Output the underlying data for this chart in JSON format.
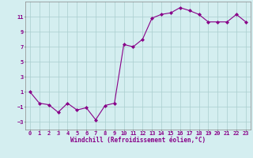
{
  "x": [
    0,
    1,
    2,
    3,
    4,
    5,
    6,
    7,
    8,
    9,
    10,
    11,
    12,
    13,
    14,
    15,
    16,
    17,
    18,
    19,
    20,
    21,
    22,
    23
  ],
  "y": [
    1.0,
    -0.5,
    -0.7,
    -1.7,
    -0.5,
    -1.4,
    -1.1,
    -2.7,
    -0.8,
    -0.5,
    7.3,
    7.0,
    8.0,
    10.8,
    11.3,
    11.5,
    12.2,
    11.8,
    11.3,
    10.3,
    10.3,
    10.3,
    11.3,
    10.3
  ],
  "line_color": "#880088",
  "marker": "D",
  "marker_size": 2.0,
  "bg_color": "#d4eef0",
  "grid_color": "#aacece",
  "xlabel": "Windchill (Refroidissement éolien,°C)",
  "xlim": [
    -0.5,
    23.5
  ],
  "ylim": [
    -4,
    13
  ],
  "xticks": [
    0,
    1,
    2,
    3,
    4,
    5,
    6,
    7,
    8,
    9,
    10,
    11,
    12,
    13,
    14,
    15,
    16,
    17,
    18,
    19,
    20,
    21,
    22,
    23
  ],
  "yticks": [
    -3,
    -1,
    1,
    3,
    5,
    7,
    9,
    11
  ],
  "tick_fontsize": 5.0,
  "xlabel_fontsize": 5.5,
  "line_width": 0.8
}
